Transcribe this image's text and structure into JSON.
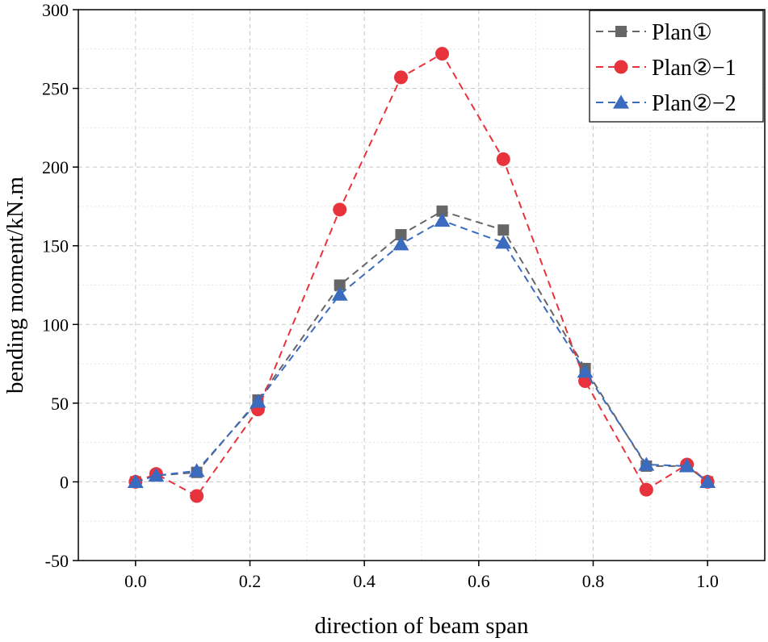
{
  "chart_data": {
    "type": "line",
    "title": "",
    "xlabel": "direction of beam span",
    "ylabel": "bending moment/kN.m",
    "xlim": [
      -0.1,
      1.1
    ],
    "ylim": [
      -50,
      300
    ],
    "xticks": [
      0.0,
      0.2,
      0.4,
      0.6,
      0.8,
      1.0
    ],
    "xtick_labels": [
      "0.0",
      "0.2",
      "0.4",
      "0.6",
      "0.8",
      "1.0"
    ],
    "yticks": [
      -50,
      0,
      50,
      100,
      150,
      200,
      250,
      300
    ],
    "ytick_labels": [
      "-50",
      "0",
      "50",
      "100",
      "150",
      "200",
      "250",
      "300"
    ],
    "grid": true,
    "legend_position": "top-right",
    "x": [
      0.0,
      0.036,
      0.107,
      0.214,
      0.357,
      0.464,
      0.536,
      0.643,
      0.786,
      0.893,
      0.964,
      1.0
    ],
    "series": [
      {
        "name": "Plan①",
        "color": "#666666",
        "marker": "square",
        "values": [
          0,
          4,
          6,
          52,
          125,
          157,
          172,
          160,
          72,
          10,
          10,
          0
        ]
      },
      {
        "name": "Plan②−1",
        "color": "#e8333d",
        "marker": "circle",
        "values": [
          0,
          5,
          -9,
          46,
          173,
          257,
          272,
          205,
          64,
          -5,
          11,
          0
        ]
      },
      {
        "name": "Plan②−2",
        "color": "#3a6bbf",
        "marker": "triangle",
        "values": [
          0,
          4,
          7,
          51,
          119,
          151,
          166,
          152,
          70,
          11,
          10,
          0
        ]
      }
    ]
  }
}
